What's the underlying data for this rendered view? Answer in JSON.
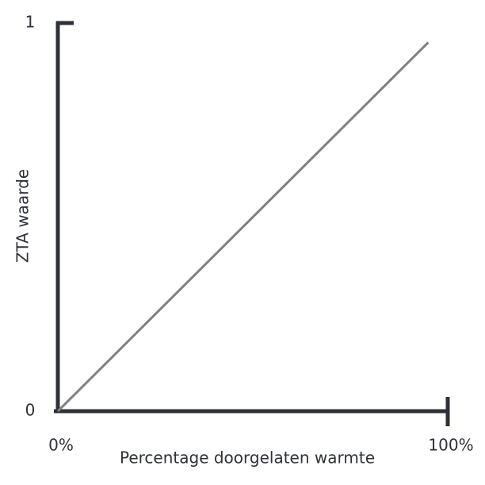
{
  "chart_data": {
    "type": "line",
    "x_label": "Percentage doorgelaten warmte",
    "y_label": "ZTA waarde",
    "x": [
      0,
      95
    ],
    "values": [
      0,
      0.95
    ],
    "color": "#808083",
    "axis_color": "#2e3138",
    "xlim": [
      0,
      100
    ],
    "ylim": [
      0,
      1
    ],
    "xticks": [
      {
        "value": 0,
        "label": "0%"
      },
      {
        "value": 100,
        "label": "100%"
      }
    ],
    "yticks": [
      0,
      1
    ]
  }
}
